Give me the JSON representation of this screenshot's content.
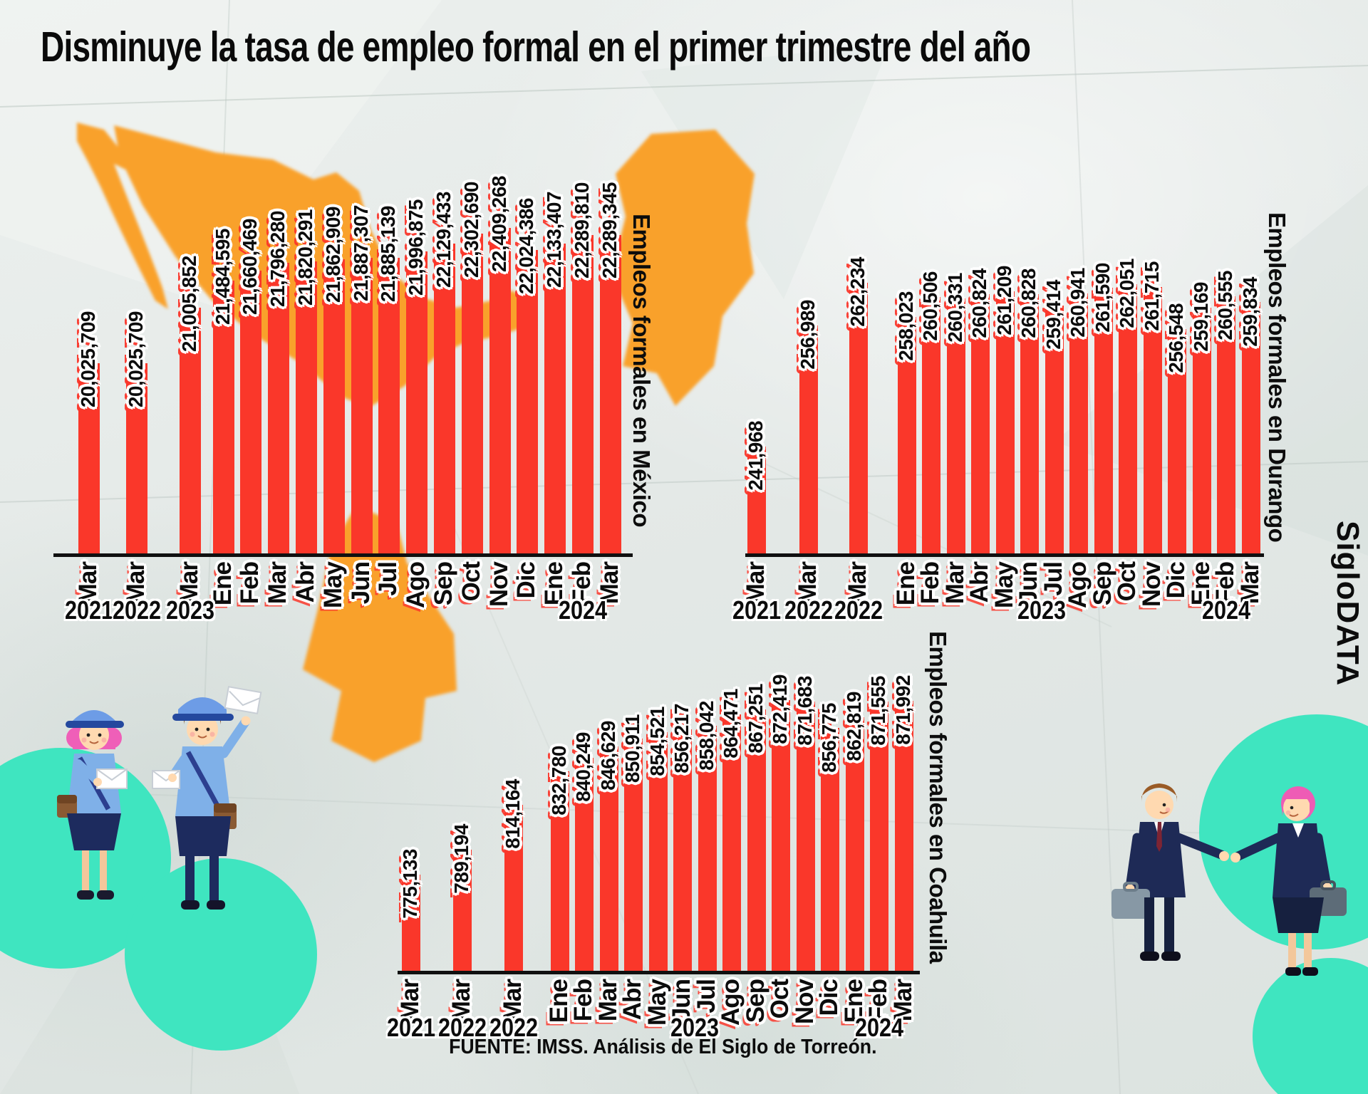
{
  "title": "Disminuye la tasa de empleo formal en el primer trimestre del año",
  "source": "FUENTE: IMSS. Análisis de El Siglo de Torreón.",
  "brand": "SigloDATA",
  "colors": {
    "bar_red": "#fa372a",
    "map_orange": "#f9a12b",
    "teal": "#3fe5c0",
    "ink": "#0c0c0c"
  },
  "chart_data": [
    {
      "id": "mexico",
      "type": "bar",
      "title": "Empleos formales en México",
      "categories": [
        "Mar",
        "Mar",
        "Mar",
        "Ene",
        "Feb",
        "Mar",
        "Abr",
        "May",
        "Jun",
        "Jul",
        "Ago",
        "Sep",
        "Oct",
        "Nov",
        "Dic",
        "Ene",
        "Feb",
        "Mar"
      ],
      "values": [
        20025709,
        20025709,
        21005852,
        21484595,
        21660469,
        21796280,
        21820291,
        21862909,
        21887307,
        21885139,
        21996875,
        22129433,
        22302690,
        22409268,
        22024386,
        22133407,
        22289810,
        22289345
      ],
      "years": [
        {
          "label": "2021",
          "index": 0
        },
        {
          "label": "2022",
          "index": 1
        },
        {
          "label": "2023",
          "index": 2
        },
        {
          "label": "2024",
          "index": 16
        }
      ],
      "ylim": [
        20025709,
        22409268
      ],
      "grid": false,
      "legend": "none"
    },
    {
      "id": "durango",
      "type": "bar",
      "title": "Empleos formales en Durango",
      "categories": [
        "Mar",
        "Mar",
        "Mar",
        "Ene",
        "Feb",
        "Mar",
        "Abr",
        "May",
        "Jun",
        "Jul",
        "Ago",
        "Sep",
        "Oct",
        "Nov",
        "Dic",
        "Ene",
        "Feb",
        "Mar"
      ],
      "values": [
        241968,
        256989,
        262234,
        258023,
        260506,
        260331,
        260824,
        261209,
        260828,
        259414,
        260941,
        261590,
        262051,
        261715,
        256548,
        259169,
        260555,
        259834
      ],
      "years": [
        {
          "label": "2021",
          "index": 0
        },
        {
          "label": "2022",
          "index": 1
        },
        {
          "label": "2022",
          "index": 2
        },
        {
          "label": "2023",
          "index": 8.5
        },
        {
          "label": "2024",
          "index": 16
        }
      ],
      "ylim": [
        241968,
        262234
      ],
      "grid": false,
      "legend": "none"
    },
    {
      "id": "coahuila",
      "type": "bar",
      "title": "Empleos formales en Coahuila",
      "categories": [
        "Mar",
        "Mar",
        "Mar",
        "Ene",
        "Feb",
        "Mar",
        "Abr",
        "May",
        "Jun",
        "Jul",
        "Ago",
        "Sep",
        "Oct",
        "Nov",
        "Dic",
        "Ene",
        "Feb",
        "Mar"
      ],
      "values": [
        775133,
        789194,
        814164,
        832780,
        840249,
        846629,
        850911,
        854521,
        856217,
        858042,
        864471,
        867251,
        872419,
        871683,
        856775,
        862819,
        871555,
        871992
      ],
      "years": [
        {
          "label": "2021",
          "index": 0
        },
        {
          "label": "2022",
          "index": 1
        },
        {
          "label": "2022",
          "index": 2
        },
        {
          "label": "2023",
          "index": 8.5
        },
        {
          "label": "2024",
          "index": 16
        }
      ],
      "ylim": [
        775133,
        872419
      ],
      "grid": false,
      "legend": "none"
    }
  ]
}
